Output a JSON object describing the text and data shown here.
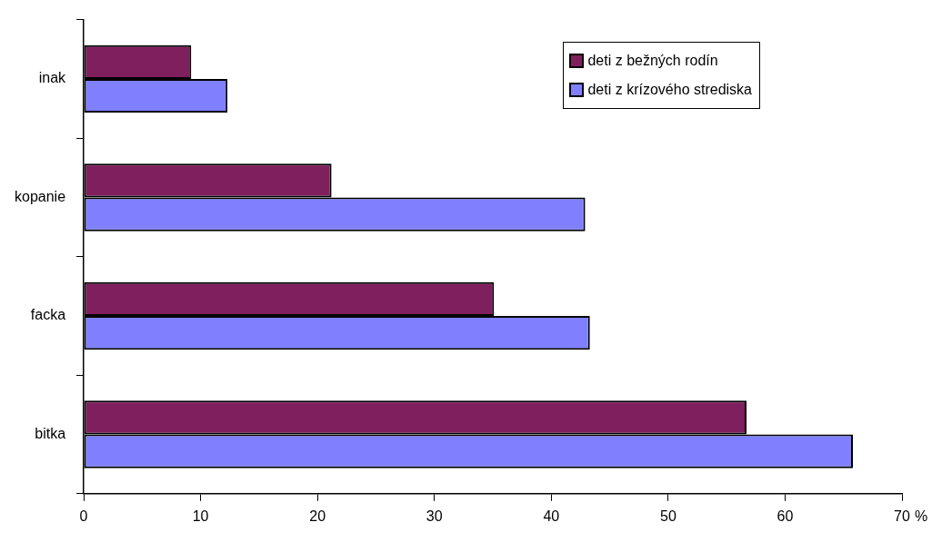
{
  "chart_data": {
    "type": "bar",
    "orientation": "horizontal",
    "xlabel": "%",
    "categories": [
      "inak",
      "kopanie",
      "facka",
      "bitka"
    ],
    "series": [
      {
        "name": "deti z bežných rodín",
        "color": "#7f1f5e",
        "values": [
          9.2,
          21.2,
          35.1,
          56.7
        ]
      },
      {
        "name": "deti z krízového strediska",
        "color": "#8080ff",
        "values": [
          12.3,
          42.9,
          43.3,
          65.8
        ]
      }
    ],
    "xlim": [
      0,
      70
    ],
    "xticks": [
      0,
      10,
      20,
      30,
      40,
      50,
      60,
      70
    ],
    "grid": false,
    "legend": "top right"
  }
}
